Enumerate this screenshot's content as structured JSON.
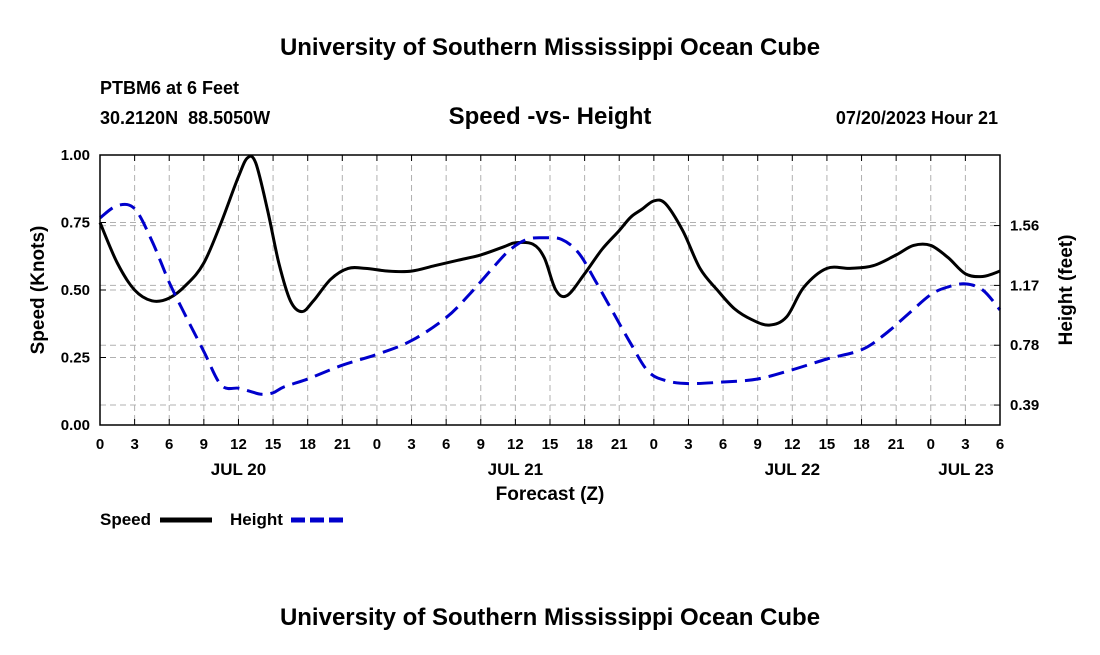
{
  "header": {
    "title": "University of Southern Mississippi Ocean Cube",
    "station_line": "PTBM6 at 6 Feet",
    "coords": "30.2120N  88.5050W",
    "subtitle": "Speed -vs- Height",
    "datetime": "07/20/2023 Hour 21"
  },
  "footer": {
    "title": "University of Southern Mississippi Ocean Cube"
  },
  "colors": {
    "speed": "#000000",
    "height": "#0000cc",
    "grid": "#b0b0b0"
  },
  "chart_data": {
    "type": "line",
    "title": "Speed -vs- Height",
    "xlabel": "Forecast (Z)",
    "ylabel": "Speed (Knots)",
    "y2label": "Height (feet)",
    "xlim": [
      0,
      78
    ],
    "ylim": [
      0,
      1
    ],
    "y2lim": [
      0.26,
      2.02
    ],
    "x_ticks": [
      0,
      3,
      6,
      9,
      12,
      15,
      18,
      21,
      24,
      27,
      30,
      33,
      36,
      39,
      42,
      45,
      48,
      51,
      54,
      57,
      60,
      63,
      66,
      69,
      72,
      75,
      78
    ],
    "x_tick_labels": [
      "0",
      "3",
      "6",
      "9",
      "12",
      "15",
      "18",
      "21",
      "0",
      "3",
      "6",
      "9",
      "12",
      "15",
      "18",
      "21",
      "0",
      "3",
      "6",
      "9",
      "12",
      "15",
      "18",
      "21",
      "0",
      "3",
      "6"
    ],
    "day_labels": [
      {
        "x": 12,
        "label": "JUL 20"
      },
      {
        "x": 36,
        "label": "JUL 21"
      },
      {
        "x": 60,
        "label": "JUL 22"
      },
      {
        "x": 81,
        "label": "JUL 23"
      }
    ],
    "y_ticks": [
      0,
      0.25,
      0.5,
      0.75,
      1
    ],
    "y_tick_labels": [
      "0.00",
      "0.25",
      "0.50",
      "0.75",
      "1.00"
    ],
    "y2_ticks": [
      0.39,
      0.78,
      1.17,
      1.56
    ],
    "y2_tick_labels": [
      "0.39",
      "0.78",
      "1.17",
      "1.56"
    ],
    "legend": [
      {
        "label": "Speed",
        "series": "speed"
      },
      {
        "label": "Height",
        "series": "height"
      }
    ],
    "series": [
      {
        "name": "Speed",
        "axis": "left",
        "style": "solid",
        "x": [
          0,
          1.5,
          3,
          4.5,
          6,
          7.5,
          9,
          10.5,
          12,
          12.8,
          13.5,
          14.5,
          15.5,
          16.5,
          17.5,
          18.5,
          20,
          21.5,
          23,
          25,
          27,
          29,
          31,
          33,
          35,
          36,
          37.5,
          38.5,
          39.5,
          40.5,
          42,
          43.5,
          45,
          46,
          47,
          48,
          49,
          50.5,
          52,
          53.5,
          55,
          56.5,
          58,
          59.5,
          61,
          63,
          65,
          67,
          69,
          70.5,
          72,
          73.5,
          75,
          76.5,
          78
        ],
        "values": [
          0.75,
          0.6,
          0.5,
          0.46,
          0.47,
          0.52,
          0.6,
          0.75,
          0.92,
          0.99,
          0.97,
          0.8,
          0.6,
          0.46,
          0.42,
          0.46,
          0.54,
          0.58,
          0.58,
          0.57,
          0.57,
          0.59,
          0.61,
          0.63,
          0.66,
          0.675,
          0.67,
          0.62,
          0.5,
          0.48,
          0.56,
          0.65,
          0.72,
          0.77,
          0.8,
          0.83,
          0.82,
          0.72,
          0.58,
          0.5,
          0.43,
          0.39,
          0.37,
          0.4,
          0.51,
          0.58,
          0.58,
          0.59,
          0.63,
          0.665,
          0.665,
          0.62,
          0.56,
          0.55,
          0.57
        ]
      },
      {
        "name": "Height",
        "axis": "right",
        "style": "dashed",
        "x": [
          0,
          1.5,
          3,
          4.5,
          6,
          7.5,
          9,
          10.5,
          12,
          13,
          14,
          15,
          16,
          18,
          21,
          24,
          27,
          30,
          32,
          34,
          35.5,
          37,
          38.5,
          40,
          41.5,
          43,
          44.5,
          46,
          47.5,
          49,
          51,
          54,
          57,
          60,
          63,
          66,
          68,
          70,
          72,
          73.5,
          75,
          76.5,
          78
        ],
        "values": [
          1.61,
          1.69,
          1.67,
          1.46,
          1.19,
          0.96,
          0.74,
          0.52,
          0.5,
          0.48,
          0.46,
          0.47,
          0.51,
          0.56,
          0.65,
          0.72,
          0.81,
          0.96,
          1.11,
          1.28,
          1.4,
          1.47,
          1.48,
          1.47,
          1.38,
          1.19,
          0.99,
          0.79,
          0.61,
          0.55,
          0.53,
          0.54,
          0.56,
          0.62,
          0.69,
          0.75,
          0.85,
          0.98,
          1.11,
          1.16,
          1.18,
          1.14,
          1.01
        ]
      }
    ]
  }
}
